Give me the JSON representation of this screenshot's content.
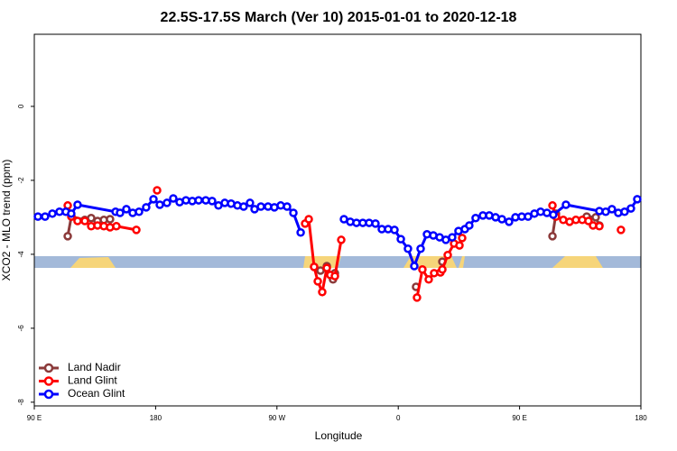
{
  "chart_data": {
    "type": "line",
    "title": "22.5S-17.5S March (Ver 10)   2015-01-01 to 2020-12-18",
    "xlabel": "Longitude",
    "ylabel": "XCO2 - MLO trend (ppm)",
    "xlim": [
      90,
      540
    ],
    "xticks": [
      {
        "value": 90,
        "label": "90 E"
      },
      {
        "value": 180,
        "label": "180"
      },
      {
        "value": 270,
        "label": "90 W"
      },
      {
        "value": 360,
        "label": "0"
      },
      {
        "value": 450,
        "label": "90 E"
      },
      {
        "value": 540,
        "label": "180"
      }
    ],
    "ylim": [
      -8.1,
      1.95
    ],
    "yticks": [
      0,
      -2,
      -4,
      -6,
      -8
    ],
    "legend": "lower left",
    "series": [
      {
        "name": "Land Nadir",
        "color": "#8b3a3a",
        "x": [
          114.8,
          117.5,
          127.5,
          132.2,
          136.9,
          141.6,
          146.2,
          null,
          297.6,
          302.3,
          307.0,
          311.6,
          313.0,
          null,
          373.2,
          null,
          392.7,
          null,
          474.4,
          477.0,
          null,
          499.8,
          506.5,
          509.2
        ],
        "values": [
          -3.51,
          -2.98,
          -3.07,
          -3.02,
          -3.1,
          -3.07,
          -3.05,
          null,
          -4.34,
          -4.44,
          -4.32,
          -4.68,
          -4.51,
          null,
          -4.88,
          null,
          -4.2,
          null,
          -3.51,
          -2.9,
          null,
          -2.98,
          -3.0,
          -3.22
        ]
      },
      {
        "name": "Land Glint",
        "color": "#ff0000",
        "x": [
          114.8,
          117.5,
          122.1,
          127.5,
          132.2,
          136.9,
          141.6,
          146.2,
          150.9,
          165.7,
          null,
          181.1,
          null,
          290.9,
          293.6,
          297.6,
          300.3,
          303.6,
          307.0,
          309.6,
          313.0,
          317.7,
          null,
          373.9,
          377.9,
          382.6,
          386.6,
          391.3,
          392.7,
          396.7,
          401.4,
          405.4,
          407.4,
          null,
          474.4,
          477.0,
          482.4,
          487.1,
          491.8,
          496.5,
          501.1,
          504.5,
          509.2,
          null,
          525.2
        ],
        "values": [
          -2.68,
          -2.98,
          -3.1,
          -3.1,
          -3.24,
          -3.22,
          -3.24,
          -3.27,
          -3.24,
          -3.34,
          null,
          -2.27,
          null,
          -3.17,
          -3.05,
          -4.34,
          -4.73,
          -5.02,
          -4.37,
          -4.56,
          -4.59,
          -3.61,
          null,
          -5.17,
          -4.41,
          -4.68,
          -4.51,
          -4.49,
          -4.41,
          -4.02,
          -3.71,
          -3.76,
          -3.56,
          null,
          -2.68,
          -2.98,
          -3.07,
          -3.12,
          -3.07,
          -3.07,
          -3.1,
          -3.22,
          -3.24,
          null,
          -3.34
        ]
      },
      {
        "name": "Ocean Glint",
        "color": "#0000ff",
        "x": [
          92.7,
          98.0,
          103.4,
          108.7,
          113.4,
          117.4,
          122.1,
          150.3,
          153.6,
          158.3,
          163.0,
          167.7,
          173.0,
          178.4,
          183.1,
          188.4,
          193.1,
          197.8,
          202.5,
          207.2,
          211.9,
          217.2,
          221.9,
          226.6,
          231.3,
          236.0,
          240.7,
          245.3,
          250.0,
          253.4,
          258.1,
          263.4,
          268.1,
          272.8,
          277.5,
          282.2,
          287.6,
          null,
          319.7,
          324.4,
          329.0,
          333.7,
          338.4,
          343.1,
          347.8,
          352.5,
          357.2,
          361.9,
          367.2,
          371.9,
          376.6,
          381.3,
          386.0,
          390.7,
          395.3,
          400.0,
          404.7,
          409.4,
          412.7,
          417.4,
          422.8,
          427.5,
          432.2,
          436.9,
          442.2,
          446.9,
          451.6,
          456.3,
          461.0,
          465.6,
          470.3,
          475.0,
          484.4,
          509.2,
          513.9,
          518.5,
          523.2,
          527.9,
          532.6,
          537.3
        ],
        "values": [
          -2.98,
          -2.98,
          -2.9,
          -2.85,
          -2.85,
          -2.9,
          -2.66,
          -2.85,
          -2.88,
          -2.78,
          -2.88,
          -2.85,
          -2.73,
          -2.51,
          -2.66,
          -2.61,
          -2.49,
          -2.59,
          -2.54,
          -2.56,
          -2.54,
          -2.54,
          -2.56,
          -2.68,
          -2.61,
          -2.63,
          -2.68,
          -2.71,
          -2.61,
          -2.78,
          -2.71,
          -2.71,
          -2.73,
          -2.68,
          -2.71,
          -2.88,
          -3.41,
          null,
          -3.05,
          -3.12,
          -3.15,
          -3.15,
          -3.15,
          -3.17,
          -3.32,
          -3.32,
          -3.34,
          -3.59,
          -3.85,
          -4.32,
          -3.85,
          -3.46,
          -3.49,
          -3.54,
          -3.61,
          -3.54,
          -3.37,
          -3.32,
          -3.22,
          -3.02,
          -2.95,
          -2.95,
          -3.0,
          -3.05,
          -3.12,
          -3.0,
          -2.98,
          -2.98,
          -2.9,
          -2.85,
          -2.88,
          -2.93,
          -2.66,
          -2.83,
          -2.85,
          -2.78,
          -2.88,
          -2.85,
          -2.76,
          -2.51
        ]
      }
    ]
  }
}
